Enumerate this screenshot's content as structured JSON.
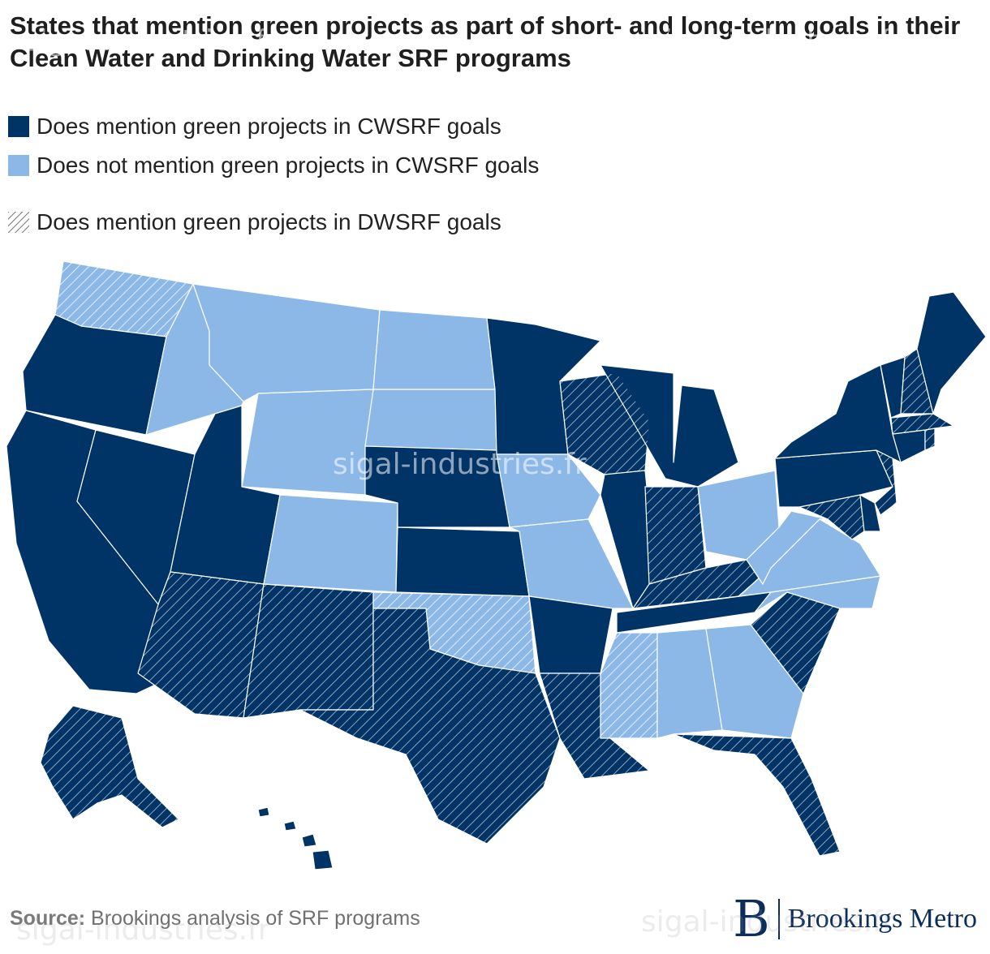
{
  "title": "States that mention green projects as part of short- and long-term goals in their Clean Water and Drinking Water SRF programs",
  "legend": {
    "cwsrf_yes": "Does mention green projects in CWSRF goals",
    "cwsrf_no": "Does not mention green projects in CWSRF goals",
    "dwsrf_yes": "Does mention green projects in DWSRF goals"
  },
  "colors": {
    "cwsrf_yes": "#003366",
    "cwsrf_no": "#8cb8e8",
    "hatch": "#ffffff",
    "border": "#ffffff"
  },
  "states": {
    "WA": {
      "cwsrf": false,
      "dwsrf": true
    },
    "OR": {
      "cwsrf": true,
      "dwsrf": false
    },
    "CA": {
      "cwsrf": true,
      "dwsrf": false
    },
    "NV": {
      "cwsrf": true,
      "dwsrf": false
    },
    "ID": {
      "cwsrf": false,
      "dwsrf": false
    },
    "MT": {
      "cwsrf": false,
      "dwsrf": false
    },
    "WY": {
      "cwsrf": false,
      "dwsrf": false
    },
    "UT": {
      "cwsrf": true,
      "dwsrf": false
    },
    "CO": {
      "cwsrf": false,
      "dwsrf": false
    },
    "AZ": {
      "cwsrf": true,
      "dwsrf": true
    },
    "NM": {
      "cwsrf": true,
      "dwsrf": true
    },
    "ND": {
      "cwsrf": false,
      "dwsrf": false
    },
    "SD": {
      "cwsrf": false,
      "dwsrf": false
    },
    "NE": {
      "cwsrf": true,
      "dwsrf": false
    },
    "KS": {
      "cwsrf": true,
      "dwsrf": false
    },
    "OK": {
      "cwsrf": false,
      "dwsrf": true
    },
    "TX": {
      "cwsrf": true,
      "dwsrf": true
    },
    "MN": {
      "cwsrf": true,
      "dwsrf": false
    },
    "IA": {
      "cwsrf": false,
      "dwsrf": false
    },
    "MO": {
      "cwsrf": false,
      "dwsrf": false
    },
    "AR": {
      "cwsrf": true,
      "dwsrf": false
    },
    "LA": {
      "cwsrf": true,
      "dwsrf": true
    },
    "WI": {
      "cwsrf": true,
      "dwsrf": true
    },
    "IL": {
      "cwsrf": true,
      "dwsrf": false
    },
    "MI": {
      "cwsrf": true,
      "dwsrf": false
    },
    "IN": {
      "cwsrf": true,
      "dwsrf": true
    },
    "OH": {
      "cwsrf": false,
      "dwsrf": false
    },
    "KY": {
      "cwsrf": true,
      "dwsrf": true
    },
    "TN": {
      "cwsrf": true,
      "dwsrf": false
    },
    "MS": {
      "cwsrf": false,
      "dwsrf": true
    },
    "AL": {
      "cwsrf": false,
      "dwsrf": false
    },
    "GA": {
      "cwsrf": false,
      "dwsrf": false
    },
    "FL": {
      "cwsrf": true,
      "dwsrf": true
    },
    "SC": {
      "cwsrf": true,
      "dwsrf": true
    },
    "NC": {
      "cwsrf": false,
      "dwsrf": false
    },
    "VA": {
      "cwsrf": false,
      "dwsrf": false
    },
    "WV": {
      "cwsrf": false,
      "dwsrf": false
    },
    "MD": {
      "cwsrf": true,
      "dwsrf": true
    },
    "DE": {
      "cwsrf": true,
      "dwsrf": false
    },
    "PA": {
      "cwsrf": true,
      "dwsrf": false
    },
    "NJ": {
      "cwsrf": true,
      "dwsrf": true
    },
    "NY": {
      "cwsrf": true,
      "dwsrf": false
    },
    "CT": {
      "cwsrf": true,
      "dwsrf": false
    },
    "RI": {
      "cwsrf": true,
      "dwsrf": true
    },
    "MA": {
      "cwsrf": true,
      "dwsrf": true
    },
    "VT": {
      "cwsrf": true,
      "dwsrf": false
    },
    "NH": {
      "cwsrf": true,
      "dwsrf": true
    },
    "ME": {
      "cwsrf": true,
      "dwsrf": false
    },
    "AK": {
      "cwsrf": true,
      "dwsrf": true
    },
    "HI": {
      "cwsrf": true,
      "dwsrf": false
    }
  },
  "source": {
    "label": "Source:",
    "text": " Brookings analysis of SRF programs"
  },
  "brand": {
    "mark": "B",
    "name": "Brookings Metro"
  },
  "watermark": "sigal-industries.fr"
}
